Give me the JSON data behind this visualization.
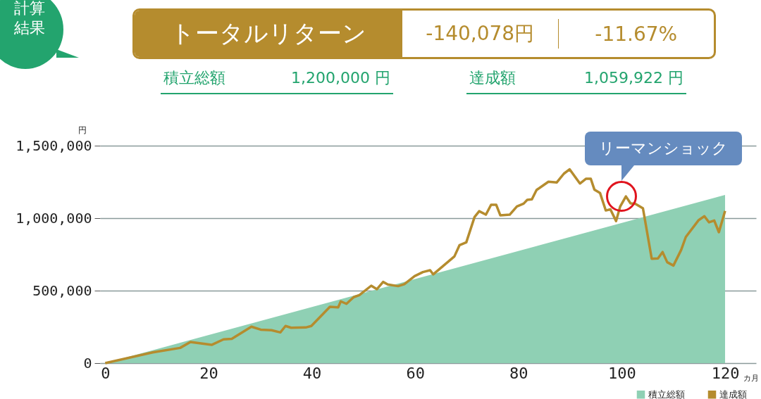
{
  "chart_data": {
    "type": "line",
    "xlabel": "カ月",
    "ylabel": "円",
    "xlim": [
      -1,
      126
    ],
    "xticks": [
      0,
      20,
      40,
      60,
      80,
      100,
      120
    ],
    "ylim": [
      0,
      1500000
    ],
    "yticks": [
      0,
      {
        "value": 500000,
        "label": "500,000"
      },
      {
        "value": 1000000,
        "label": "1,000,000"
      },
      {
        "value": 1500000,
        "label": "1,500,000"
      }
    ],
    "grid": "y",
    "legend": "bottom right",
    "series": [
      {
        "name": "積立総額",
        "type": "area",
        "color": "#8fd0b4",
        "x": [
          0,
          120
        ],
        "values": [
          0,
          1160000
        ]
      },
      {
        "name": "達成額",
        "color": "#b58c2e",
        "x": [
          0,
          9.2,
          14.5,
          16.5,
          20.6,
          22.9,
          24.5,
          28.3,
          30.1,
          32.2,
          33.9,
          34.9,
          36,
          38.8,
          39.9,
          43.5,
          45.1,
          45.6,
          46.7,
          48.1,
          49.2,
          51.5,
          52.6,
          53.8,
          54.7,
          56.7,
          57.9,
          59.9,
          61.5,
          62.9,
          63.5,
          67.6,
          68.6,
          69.9,
          71.5,
          72.4,
          73.7,
          74.7,
          75.7,
          76.5,
          78.3,
          79.7,
          81,
          81.7,
          82.6,
          83.5,
          85.8,
          87.4,
          88.8,
          89.9,
          91.9,
          93.1,
          94,
          94.7,
          95.8,
          96.9,
          97.8,
          98.9,
          99.7,
          100.8,
          101.7,
          102.6,
          104.1,
          105.8,
          107,
          107.9,
          108.8,
          110,
          111.5,
          112.4,
          114.9,
          116,
          116.9,
          117.9,
          118.8,
          120
        ],
        "values": [
          0,
          74000,
          105000,
          146000,
          126000,
          164000,
          167000,
          251000,
          231000,
          227000,
          212000,
          256000,
          244000,
          246000,
          256000,
          388000,
          385000,
          426000,
          409000,
          455000,
          469000,
          534000,
          510000,
          560000,
          542000,
          531000,
          544000,
          600000,
          628000,
          641000,
          612000,
          736000,
          814000,
          833000,
          1008000,
          1048000,
          1024000,
          1092000,
          1092000,
          1019000,
          1024000,
          1081000,
          1100000,
          1126000,
          1130000,
          1194000,
          1251000,
          1246000,
          1307000,
          1337000,
          1239000,
          1272000,
          1272000,
          1197000,
          1173000,
          1053000,
          1061000,
          980000,
          1081000,
          1150000,
          1102000,
          1100000,
          1068000,
          720000,
          722000,
          766000,
          696000,
          673000,
          781000,
          870000,
          987000,
          1013000,
          971000,
          984000,
          903000,
          1050000
        ]
      }
    ],
    "annotations": [
      "計算結果",
      "トータルリターン",
      "-140,078円",
      "-11.67%",
      "積立総額",
      "1,200,000 円",
      "達成額",
      "1,059,922 円",
      {
        "text": "リーマンショック",
        "x": 100,
        "y": 1150000
      }
    ]
  }
}
